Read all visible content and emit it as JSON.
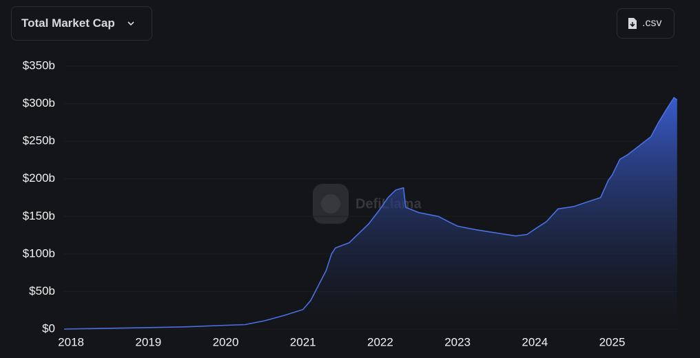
{
  "controls": {
    "metric": "Total Market Cap",
    "download": ".csv"
  },
  "chart_data": {
    "type": "area",
    "watermark": "DefiLlama",
    "color": "#4a70e4",
    "x": [
      2017.91,
      2019,
      2019.5,
      2020,
      2020.25,
      2020.5,
      2020.75,
      2021,
      2021.1,
      2021.2,
      2021.3,
      2021.37,
      2021.42,
      2021.6,
      2021.7,
      2021.85,
      2022,
      2022.1,
      2022.2,
      2022.3,
      2022.33,
      2022.5,
      2022.75,
      2022.9,
      2023,
      2023.25,
      2023.5,
      2023.75,
      2023.9,
      2024,
      2024.15,
      2024.3,
      2024.5,
      2024.7,
      2024.85,
      2024.95,
      2025,
      2025.1,
      2025.2,
      2025.35,
      2025.5,
      2025.6,
      2025.7,
      2025.8,
      2025.84
    ],
    "values": [
      0,
      2,
      3,
      5,
      6,
      11,
      18,
      26,
      38,
      58,
      78,
      100,
      108,
      115,
      125,
      140,
      160,
      175,
      185,
      188,
      162,
      155,
      150,
      142,
      137,
      132,
      128,
      124,
      126,
      133,
      143,
      160,
      163,
      170,
      175,
      198,
      205,
      226,
      232,
      244,
      256,
      275,
      292,
      308,
      305
    ],
    "xlim": [
      2017.91,
      2025.86
    ],
    "xticks": [
      2018,
      2019,
      2020,
      2021,
      2022,
      2023,
      2024,
      2025
    ],
    "ylim": [
      0,
      350
    ],
    "yticks": [
      {
        "value": 0,
        "label": "$0"
      },
      {
        "value": 50,
        "label": "$50b"
      },
      {
        "value": 100,
        "label": "$100b"
      },
      {
        "value": 150,
        "label": "$150b"
      },
      {
        "value": 200,
        "label": "$200b"
      },
      {
        "value": 250,
        "label": "$250b"
      },
      {
        "value": 300,
        "label": "$300b"
      },
      {
        "value": 350,
        "label": "$350b"
      }
    ],
    "grid": true
  }
}
